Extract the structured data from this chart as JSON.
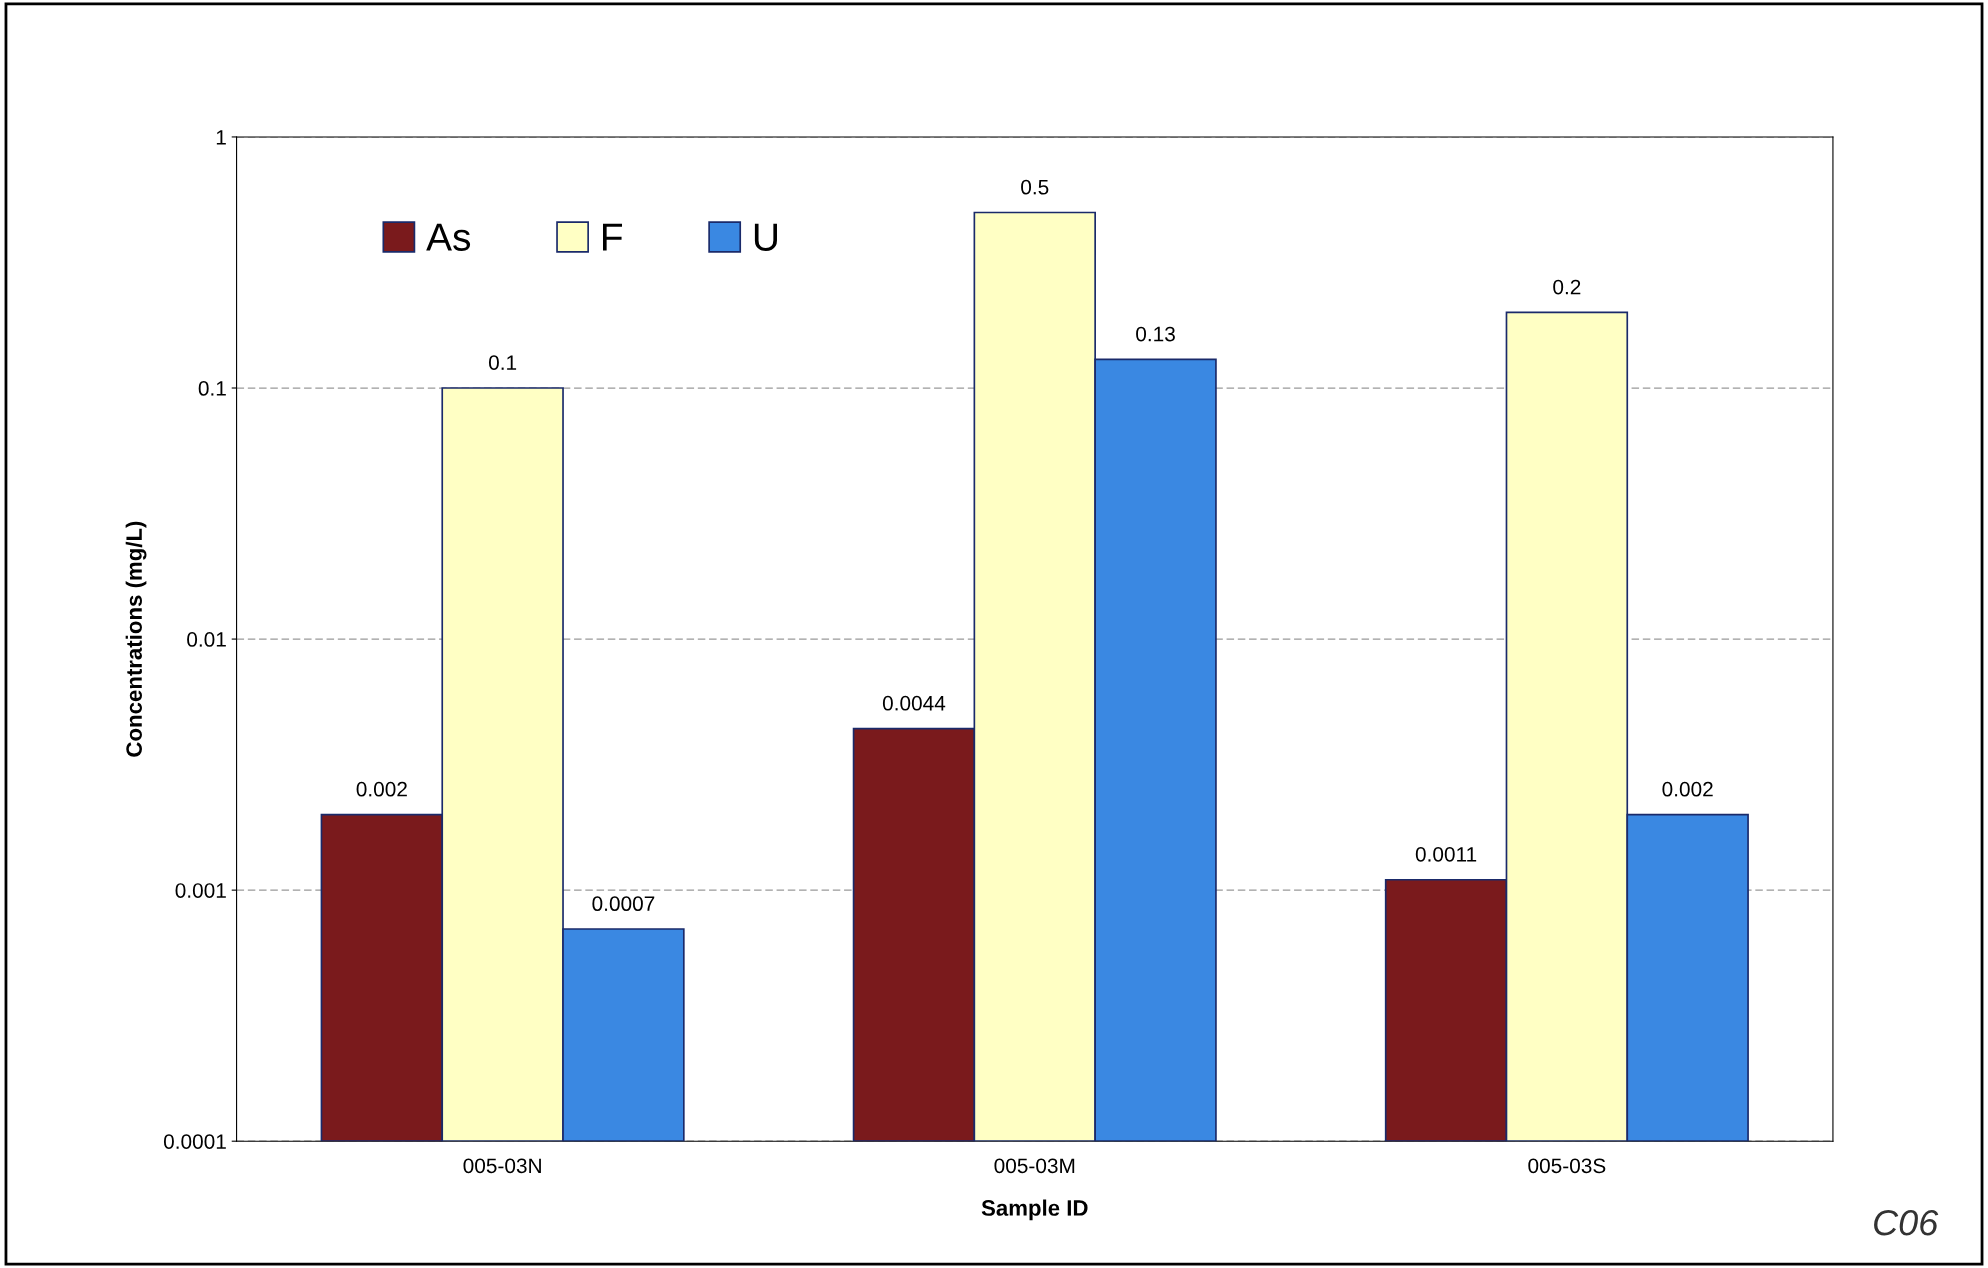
{
  "chart_data": {
    "type": "bar",
    "xlabel": "Sample ID",
    "ylabel": "Concentrations (mg/L)",
    "categories": [
      "005-03N",
      "005-03M",
      "005-03S"
    ],
    "series": [
      {
        "name": "As",
        "color": "#7a1a1c",
        "values": [
          0.002,
          0.0044,
          0.0011
        ]
      },
      {
        "name": "F",
        "color": "#ffffc4",
        "values": [
          0.1,
          0.5,
          0.2
        ]
      },
      {
        "name": "U",
        "color": "#3a88e2",
        "values": [
          0.0007,
          0.13,
          0.002
        ]
      }
    ],
    "log": true,
    "ylim": [
      0.0001,
      1
    ],
    "yticks": [
      0.0001,
      0.001,
      0.01,
      0.1,
      1
    ],
    "grid": "y",
    "legend": "top left",
    "data_labels": true,
    "annotations": [
      "C06"
    ]
  }
}
